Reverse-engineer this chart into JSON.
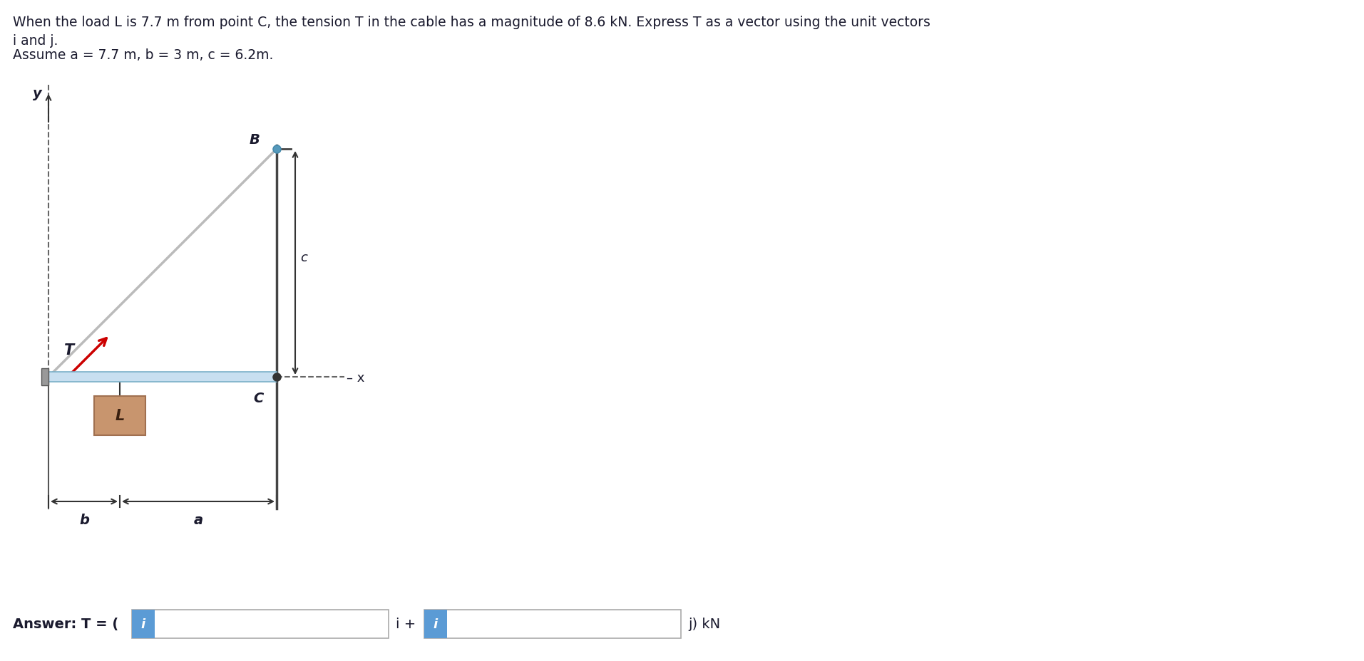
{
  "title_line1": "When the load L is 7.7 m from point C, the tension T in the cable has a magnitude of 8.6 kN. Express T as a vector using the unit vectors",
  "title_line2": "i and j.",
  "title_line3": "Assume a = 7.7 m, b = 3 m, c = 6.2m.",
  "answer_label": "Answer: T = (",
  "answer_i_label": "i +",
  "answer_j_label": "j) kN",
  "bg_color": "#ffffff",
  "beam_color": "#c8dff0",
  "beam_edge_color": "#7aafc8",
  "cable_color": "#bbbbbb",
  "tension_arrow_color": "#cc0000",
  "load_box_color": "#c8956e",
  "load_box_edge": "#a07050",
  "input_box_color": "#5b9bd5",
  "text_color": "#1a1a2e",
  "dashed_color": "#666666",
  "dim_color": "#333333"
}
